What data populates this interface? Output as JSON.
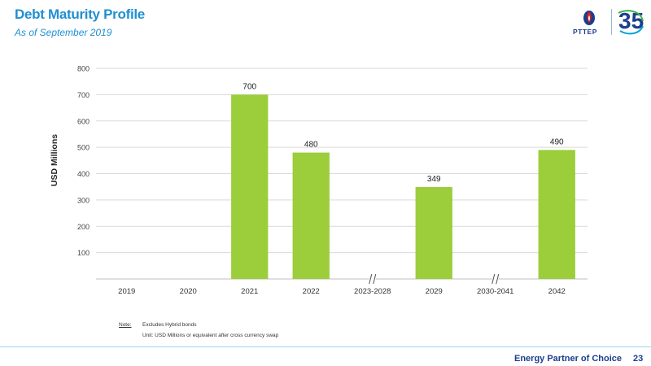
{
  "header": {
    "title": "Debt Maturity Profile",
    "subtitle": "As of September 2019"
  },
  "logo": {
    "brand_text": "PTTEP",
    "anniversary_text": "35",
    "tagline_small": "ENERGY PARTNER OF CHOICE",
    "icons": [
      "pttep-flame-logo-icon",
      "35th-anniversary-logo-icon"
    ]
  },
  "chart_data": {
    "type": "bar",
    "title": "",
    "xlabel": "",
    "ylabel": "USD Millions",
    "ylim": [
      0,
      800
    ],
    "yticks": [
      100,
      200,
      300,
      400,
      500,
      600,
      700,
      800
    ],
    "grid": true,
    "categories": [
      "2019",
      "2020",
      "2021",
      "2022",
      "2023-2028",
      "2029",
      "2030-2041",
      "2042"
    ],
    "values": [
      0,
      0,
      700,
      480,
      0,
      349,
      0,
      490
    ],
    "data_labels": [
      "",
      "",
      "700",
      "480",
      "",
      "349",
      "",
      "490"
    ],
    "axis_breaks_after": [
      "2023-2028",
      "2030-2041"
    ],
    "bar_color": "#9ccd3a"
  },
  "notes": {
    "label": "Note:",
    "text": "Excludes Hybrid bonds",
    "unit": "Unit: USD Millions or equivalent after cross currency swap"
  },
  "footer": {
    "tagline": "Energy Partner of Choice",
    "page_number": "23"
  },
  "colors": {
    "title": "#1f8fd1",
    "brand_navy": "#1b3e8f",
    "bar": "#9ccd3a"
  }
}
